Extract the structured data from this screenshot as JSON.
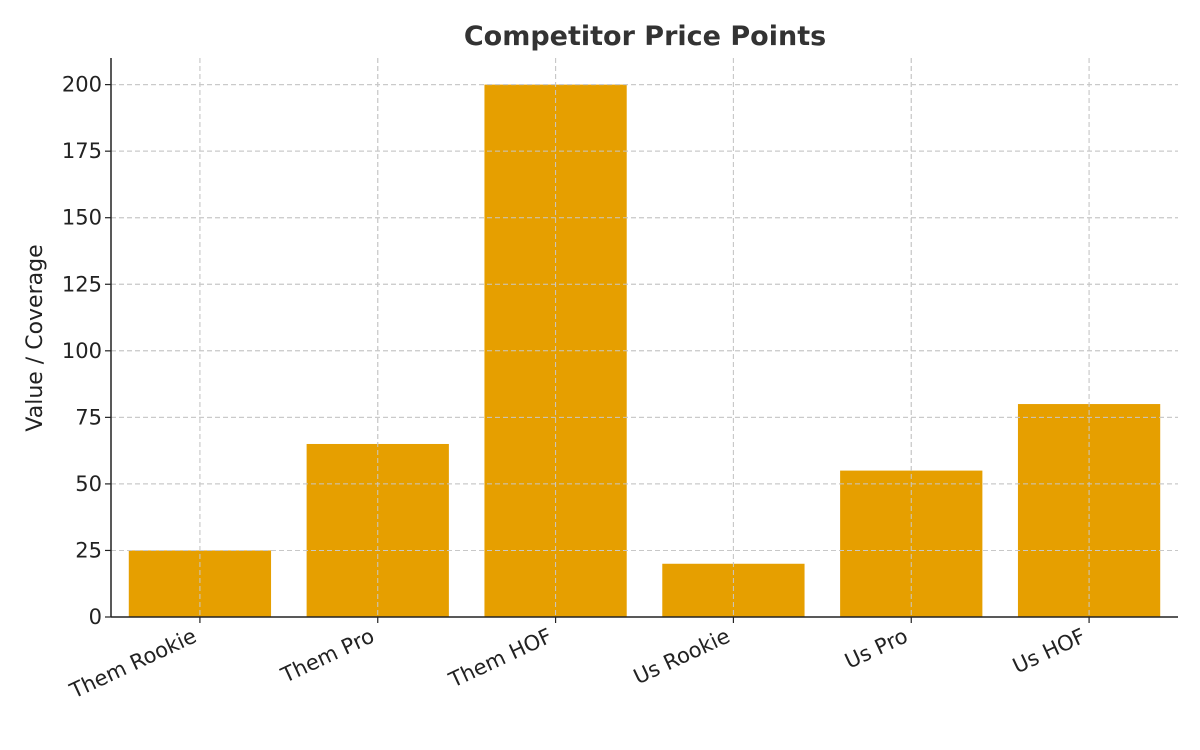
{
  "chart_data": {
    "type": "bar",
    "title": "Competitor Price Points",
    "xlabel": "",
    "ylabel": "Value / Coverage",
    "categories": [
      "Them Rookie",
      "Them Pro",
      "Them HOF",
      "Us Rookie",
      "Us Pro",
      "Us HOF"
    ],
    "values": [
      25,
      65,
      200,
      20,
      55,
      80
    ],
    "ylim": [
      0,
      210
    ],
    "yticks": [
      0,
      25,
      50,
      75,
      100,
      125,
      150,
      175,
      200
    ],
    "grid": true,
    "bar_color": "#E69F00",
    "legend": "none"
  }
}
